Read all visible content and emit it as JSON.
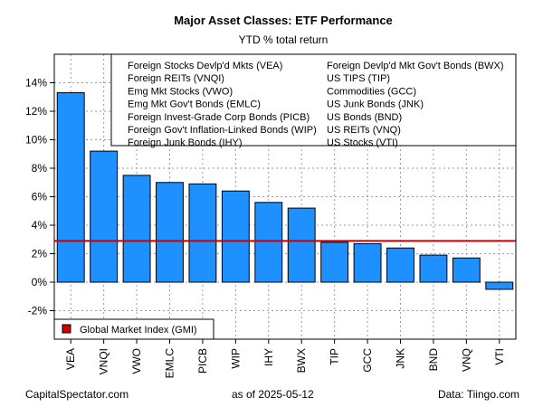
{
  "chart_data": {
    "type": "bar",
    "title": "Major Asset Classes: ETF Performance",
    "subtitle": "YTD % total return",
    "ylim": [
      -4,
      16
    ],
    "yticks": [
      -2,
      0,
      2,
      4,
      6,
      8,
      10,
      12,
      14
    ],
    "ytick_labels": [
      "-2%",
      "0%",
      "2%",
      "4%",
      "6%",
      "8%",
      "10%",
      "12%",
      "14%"
    ],
    "grid": true,
    "categories": [
      "VEA",
      "VNQI",
      "VWO",
      "EMLC",
      "PICB",
      "WIP",
      "IHY",
      "BWX",
      "TIP",
      "GCC",
      "JNK",
      "BND",
      "VNQ",
      "VTI"
    ],
    "values": [
      13.3,
      9.2,
      7.5,
      7.0,
      6.9,
      6.4,
      5.6,
      5.2,
      2.8,
      2.7,
      2.4,
      1.9,
      1.7,
      -0.5
    ],
    "bar_color": "#1e90ff",
    "reference_line": {
      "label": "Global Market Index (GMI)",
      "value": 2.9,
      "color": "#cc0000"
    },
    "legend_left": [
      "Foreign Stocks Devlp'd Mkts (VEA)",
      "Foreign REITs (VNQI)",
      "Emg Mkt Stocks (VWO)",
      "Emg Mkt Gov't Bonds (EMLC)",
      "Foreign Invest-Grade Corp Bonds (PICB)",
      "Foreign Gov't Inflation-Linked Bonds (WIP)",
      "Foreign Junk Bonds (IHY)"
    ],
    "legend_right": [
      "Foreign Devlp'd Mkt Gov't Bonds (BWX)",
      "US TIPS (TIP)",
      "Commodities (GCC)",
      "US Junk Bonds (JNK)",
      "US Bonds (BND)",
      "US REITs (VNQ)",
      "US Stocks (VTI)"
    ]
  },
  "footer": {
    "left": "CapitalSpectator.com",
    "center": "as of   2025-05-12",
    "right": "Data: Tiingo.com"
  }
}
